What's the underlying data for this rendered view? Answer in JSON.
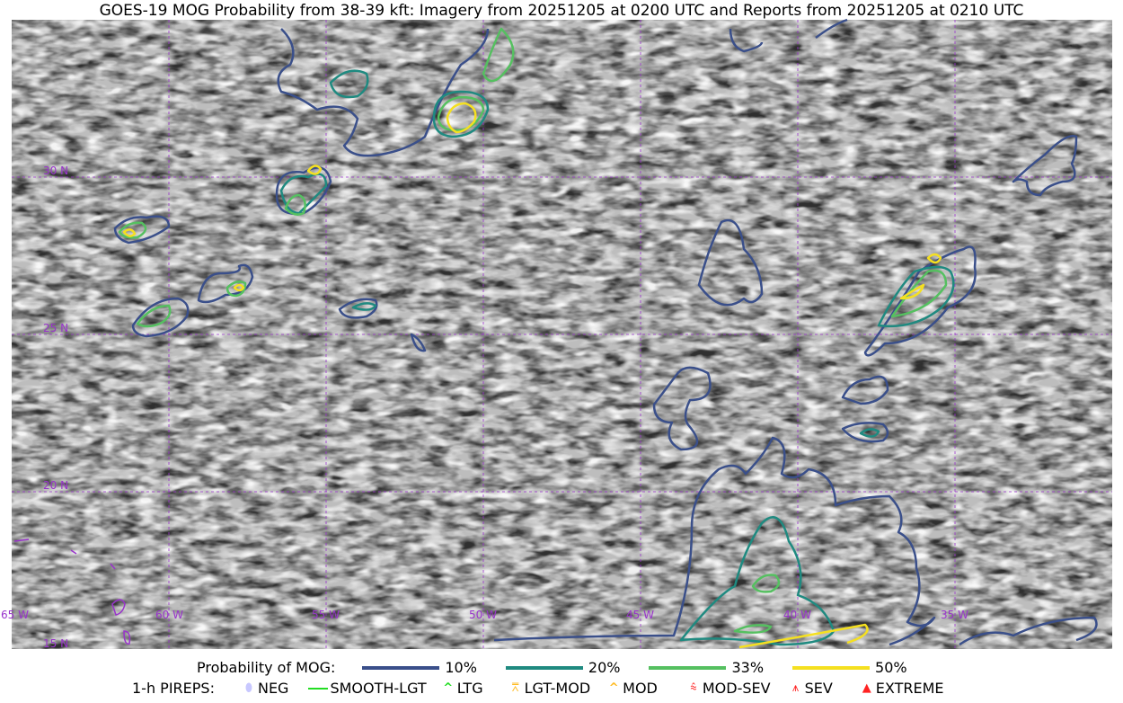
{
  "title": "GOES-19 MOG Probability from 38-39 kft: Imagery from 20251205 at 0200 UTC and Reports from 20251205 at 0210 UTC",
  "map": {
    "lon_labels": [
      "65 W",
      "60 W",
      "55 W",
      "50 W",
      "45 W",
      "40 W",
      "35 W"
    ],
    "lat_labels": [
      "30 N",
      "25 N",
      "20 N",
      "15 N"
    ],
    "grid_color": "#9933cc"
  },
  "legend": {
    "prob_label": "Probability of MOG:",
    "levels": [
      {
        "label": "10%",
        "color": "#3a4f8a"
      },
      {
        "label": "20%",
        "color": "#1f8a80"
      },
      {
        "label": "33%",
        "color": "#55c060"
      },
      {
        "label": "50%",
        "color": "#f5e020"
      }
    ],
    "pirep_label": "1-h PIREPS:",
    "pireps": [
      {
        "label": "NEG",
        "icon": "neg-oval-icon",
        "color": "#c8c8ff"
      },
      {
        "label": "SMOOTH-LGT",
        "icon": "line-icon",
        "color": "#22dd22"
      },
      {
        "label": "LTG",
        "icon": "caret-icon",
        "color": "#22dd22"
      },
      {
        "label": "LGT-MOD",
        "icon": "caret-bar-icon",
        "color": "#ffbb22"
      },
      {
        "label": "MOD",
        "icon": "caret-icon",
        "color": "#ffbb22"
      },
      {
        "label": "MOD-SEV",
        "icon": "double-caret-bar-icon",
        "color": "#ff2222"
      },
      {
        "label": "SEV",
        "icon": "double-caret-icon",
        "color": "#ff2222"
      },
      {
        "label": "EXTREME",
        "icon": "filled-triangle-icon",
        "color": "#ff2222"
      }
    ]
  }
}
